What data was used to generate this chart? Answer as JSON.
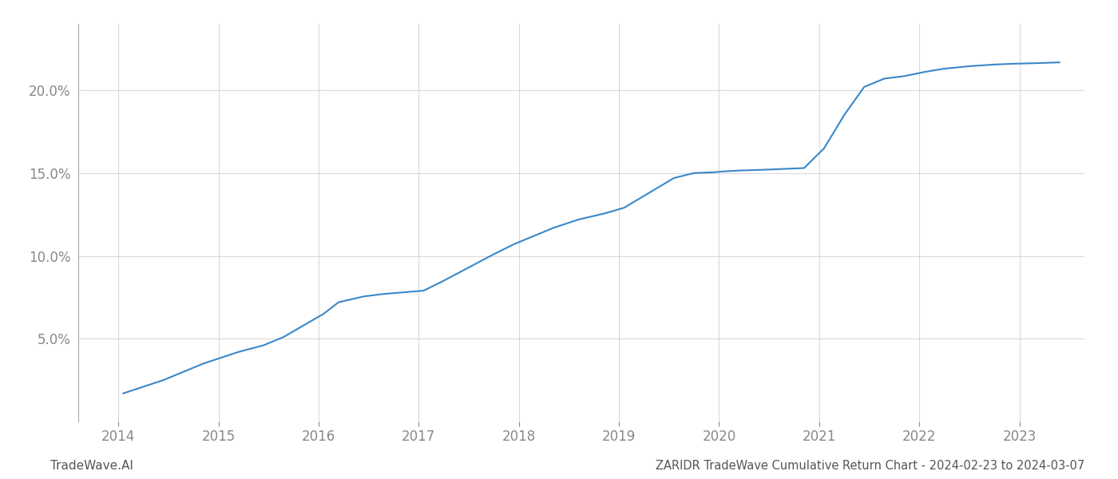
{
  "title": "ZARIDR TradeWave Cumulative Return Chart - 2024-02-23 to 2024-03-07",
  "watermark": "TradeWave.AI",
  "x_years": [
    2014,
    2015,
    2016,
    2017,
    2018,
    2019,
    2020,
    2021,
    2022,
    2023
  ],
  "x_data": [
    2014.05,
    2014.2,
    2014.45,
    2014.65,
    2014.85,
    2015.0,
    2015.2,
    2015.45,
    2015.65,
    2015.85,
    2016.05,
    2016.2,
    2016.45,
    2016.65,
    2016.85,
    2017.05,
    2017.25,
    2017.5,
    2017.75,
    2017.95,
    2018.15,
    2018.35,
    2018.6,
    2018.85,
    2019.05,
    2019.3,
    2019.55,
    2019.75,
    2019.95,
    2020.05,
    2020.2,
    2020.45,
    2020.65,
    2020.85,
    2021.05,
    2021.25,
    2021.45,
    2021.65,
    2021.85,
    2022.05,
    2022.25,
    2022.5,
    2022.75,
    2022.95,
    2023.15,
    2023.4
  ],
  "y_data": [
    1.7,
    2.0,
    2.5,
    3.0,
    3.5,
    3.8,
    4.2,
    4.6,
    5.1,
    5.8,
    6.5,
    7.2,
    7.55,
    7.7,
    7.8,
    7.9,
    8.5,
    9.3,
    10.1,
    10.7,
    11.2,
    11.7,
    12.2,
    12.55,
    12.9,
    13.8,
    14.7,
    15.0,
    15.05,
    15.1,
    15.15,
    15.2,
    15.25,
    15.3,
    16.5,
    18.5,
    20.2,
    20.7,
    20.85,
    21.1,
    21.3,
    21.45,
    21.55,
    21.6,
    21.63,
    21.68
  ],
  "line_color": "#3a87c8",
  "line_width": 1.5,
  "background_color": "#ffffff",
  "grid_color": "#d0d0d0",
  "tick_color": "#888888",
  "title_color": "#555555",
  "watermark_color": "#555555",
  "ylim": [
    0,
    24
  ],
  "yticks": [
    5.0,
    10.0,
    15.0,
    20.0
  ],
  "xlim": [
    2013.6,
    2023.65
  ],
  "title_fontsize": 10.5,
  "watermark_fontsize": 11,
  "tick_fontsize": 12
}
